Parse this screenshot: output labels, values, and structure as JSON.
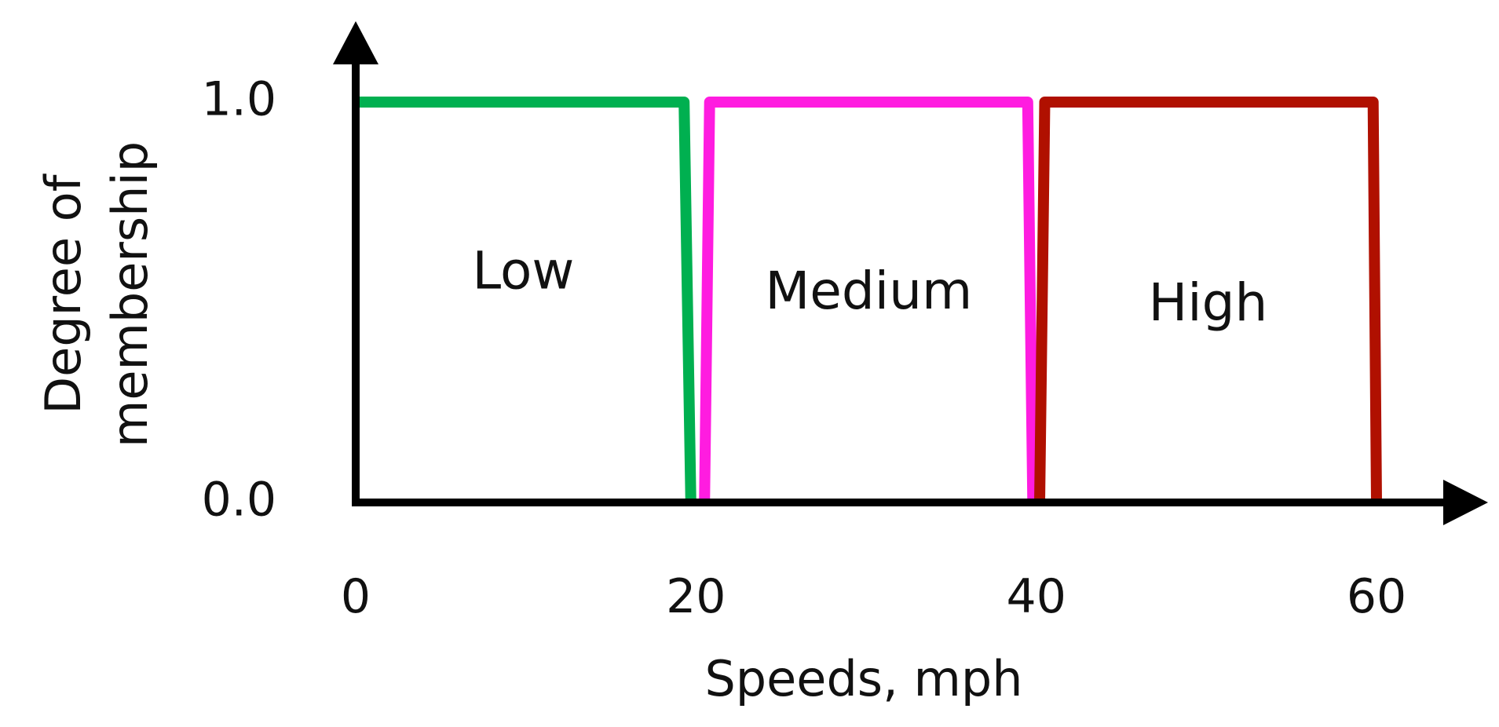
{
  "chart_data": {
    "type": "line",
    "title": "",
    "xlabel": "Speeds, mph",
    "ylabel": [
      "Degree of",
      "membership"
    ],
    "xlim": [
      0,
      60
    ],
    "ylim": [
      0,
      1.0
    ],
    "x_ticks": [
      "0",
      "20",
      "40",
      "60"
    ],
    "y_ticks": [
      "0.0",
      "1.0"
    ],
    "grid": false,
    "legend": "none",
    "series": [
      {
        "name": "Low",
        "color": "#00b050",
        "x": [
          0,
          19.3,
          19.7
        ],
        "y": [
          1.0,
          1.0,
          0.0
        ]
      },
      {
        "name": "Medium",
        "color": "#ff1ce0",
        "x": [
          20.5,
          20.8,
          39.5,
          39.8
        ],
        "y": [
          0.0,
          1.0,
          1.0,
          0.0
        ]
      },
      {
        "name": "High",
        "color": "#b01000",
        "x": [
          40.2,
          40.5,
          59.8,
          60.0
        ],
        "y": [
          0.0,
          1.0,
          1.0,
          0.0
        ]
      }
    ]
  }
}
